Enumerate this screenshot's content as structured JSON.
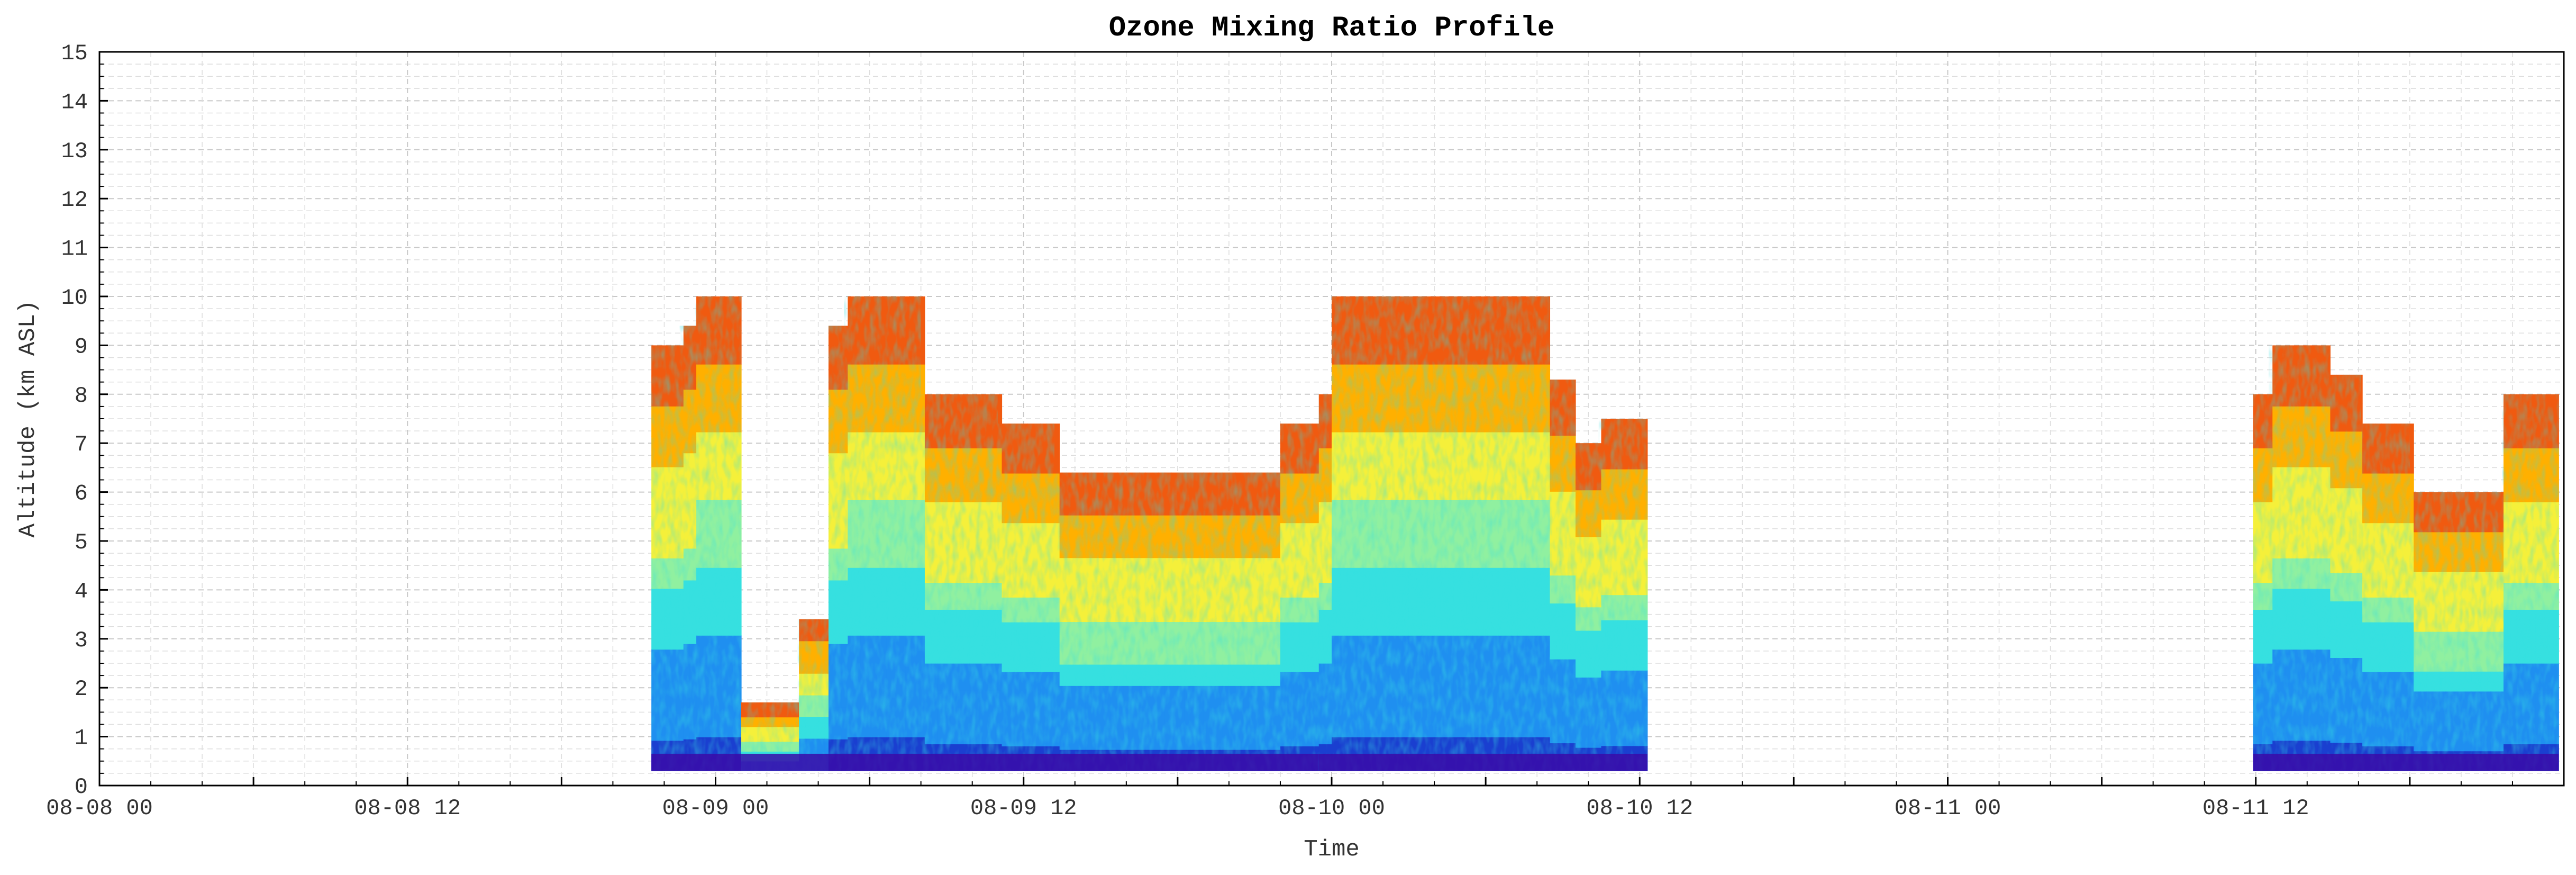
{
  "chart_data": {
    "type": "heatmap",
    "title": "Ozone Mixing Ratio Profile",
    "xlabel": "Time",
    "ylabel": "Altitude (km ASL)",
    "x_ticks": [
      "08-08 00",
      "08-08 12",
      "08-09 00",
      "08-09 12",
      "08-10 00",
      "08-10 12",
      "08-11 00",
      "08-11 12"
    ],
    "xlim_hours": [
      0,
      96
    ],
    "x_tick_hours": [
      0,
      12,
      24,
      36,
      48,
      60,
      72,
      84
    ],
    "y_ticks": [
      "0",
      "1",
      "2",
      "3",
      "4",
      "5",
      "6",
      "7",
      "8",
      "9",
      "10",
      "11",
      "12",
      "13",
      "14",
      "15"
    ],
    "ylim": [
      0,
      15
    ],
    "grid": true,
    "colormap": [
      "#3a0aa8",
      "#1a3fd0",
      "#1f8ff0",
      "#36e0e0",
      "#90f0a0",
      "#f5f03a",
      "#ffb000",
      "#f05a10",
      "#c01010"
    ],
    "series": [
      {
        "segments": [
          {
            "start": 21.5,
            "end": 25.0,
            "bottom": 0.3,
            "tops": [
              [
                21.5,
                9.0
              ],
              [
                22.6,
                9.4
              ],
              [
                23.2,
                10.0
              ],
              [
                25.0,
                10.0
              ]
            ]
          },
          {
            "start": 25.0,
            "end": 28.4,
            "bottom": 0.3,
            "tops": [
              [
                25.0,
                1.7
              ],
              [
                26.8,
                1.7
              ],
              [
                27.2,
                3.4
              ],
              [
                28.4,
                3.4
              ]
            ]
          },
          {
            "start": 28.4,
            "end": 40.0,
            "bottom": 0.3,
            "tops": [
              [
                28.4,
                9.4
              ],
              [
                29.0,
                10.0
              ],
              [
                31.5,
                10.0
              ],
              [
                32.0,
                8.0
              ],
              [
                34.5,
                8.0
              ],
              [
                35.0,
                7.4
              ],
              [
                36.6,
                7.4
              ],
              [
                37.2,
                6.4
              ],
              [
                40.0,
                6.4
              ]
            ]
          },
          {
            "start": 40.0,
            "end": 47.5,
            "bottom": 0.3,
            "tops": [
              [
                40.0,
                6.4
              ],
              [
                45.5,
                6.4
              ],
              [
                46.0,
                7.4
              ],
              [
                47.5,
                7.4
              ]
            ]
          },
          {
            "start": 47.5,
            "end": 60.3,
            "bottom": 0.3,
            "tops": [
              [
                47.5,
                8.0
              ],
              [
                48.0,
                10.0
              ],
              [
                56.0,
                10.0
              ],
              [
                56.5,
                8.3
              ],
              [
                57.5,
                7.0
              ],
              [
                58.4,
                7.5
              ],
              [
                60.3,
                7.5
              ]
            ]
          },
          {
            "start": 83.9,
            "end": 95.8,
            "bottom": 0.3,
            "tops": [
              [
                83.9,
                8.0
              ],
              [
                84.5,
                9.0
              ],
              [
                86.4,
                9.0
              ],
              [
                86.9,
                8.4
              ],
              [
                88.1,
                7.4
              ],
              [
                89.5,
                7.4
              ],
              [
                90.0,
                6.0
              ],
              [
                93.1,
                6.0
              ],
              [
                93.6,
                8.0
              ],
              [
                95.8,
                8.0
              ]
            ]
          }
        ]
      }
    ]
  }
}
